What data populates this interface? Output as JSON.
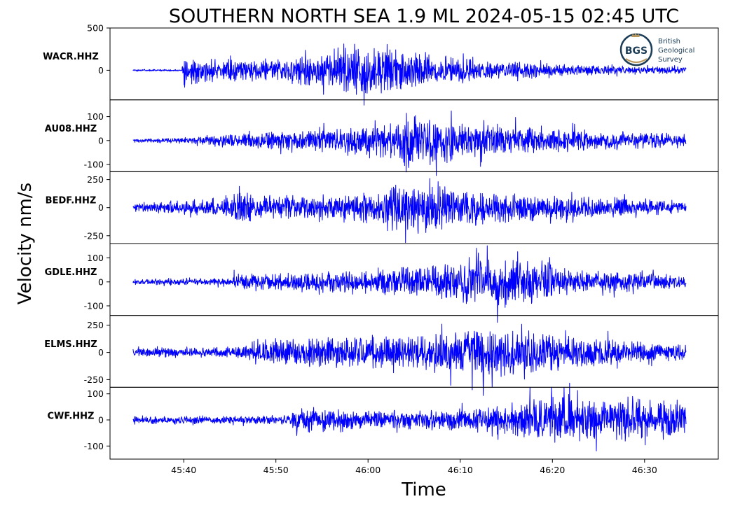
{
  "chart_data": {
    "type": "line",
    "title": "SOUTHERN NORTH SEA 1.9 ML   2024-05-15 02:45 UTC",
    "xlabel": "Time",
    "ylabel": "Velocity nm/s",
    "x_range_seconds": [
      32,
      98
    ],
    "x_ticks": [
      {
        "label": "45:40",
        "value": 40
      },
      {
        "label": "45:50",
        "value": 50
      },
      {
        "label": "46:00",
        "value": 60
      },
      {
        "label": "46:10",
        "value": 70
      },
      {
        "label": "46:20",
        "value": 80
      },
      {
        "label": "46:30",
        "value": 90
      }
    ],
    "trace_window": [
      34.5,
      94.5
    ],
    "panels": [
      {
        "station": "WACR.HHZ",
        "ylim": [
          -350,
          500
        ],
        "yticks": [
          {
            "label": "500",
            "value": 500
          },
          {
            "label": "0",
            "value": 0
          }
        ],
        "envelope": [
          [
            34.5,
            12
          ],
          [
            39.8,
            12
          ],
          [
            39.9,
            300
          ],
          [
            41.5,
            170
          ],
          [
            45,
            140
          ],
          [
            50,
            160
          ],
          [
            55,
            220
          ],
          [
            58,
            320
          ],
          [
            61,
            340
          ],
          [
            64,
            260
          ],
          [
            70,
            160
          ],
          [
            80,
            80
          ],
          [
            88,
            55
          ],
          [
            94.5,
            45
          ]
        ]
      },
      {
        "station": "AU08.HHZ",
        "ylim": [
          -130,
          170
        ],
        "yticks": [
          {
            "label": "100",
            "value": 100
          },
          {
            "label": "0",
            "value": 0
          },
          {
            "label": "-100",
            "value": -100
          }
        ],
        "envelope": [
          [
            34.5,
            8
          ],
          [
            40,
            14
          ],
          [
            46,
            35
          ],
          [
            55,
            55
          ],
          [
            62,
            75
          ],
          [
            66,
            130
          ],
          [
            68,
            100
          ],
          [
            75,
            70
          ],
          [
            85,
            45
          ],
          [
            94.5,
            28
          ]
        ]
      },
      {
        "station": "BEDF.HHZ",
        "ylim": [
          -320,
          320
        ],
        "yticks": [
          {
            "label": "250",
            "value": 250
          },
          {
            "label": "0",
            "value": 0
          },
          {
            "label": "-250",
            "value": -250
          }
        ],
        "envelope": [
          [
            34.5,
            40
          ],
          [
            39,
            70
          ],
          [
            44,
            80
          ],
          [
            45.5,
            170
          ],
          [
            48,
            110
          ],
          [
            55,
            120
          ],
          [
            60,
            170
          ],
          [
            63,
            250
          ],
          [
            67,
            280
          ],
          [
            70,
            180
          ],
          [
            80,
            120
          ],
          [
            88,
            95
          ],
          [
            94.5,
            55
          ]
        ]
      },
      {
        "station": "GDLE.HHZ",
        "ylim": [
          -140,
          160
        ],
        "yticks": [
          {
            "label": "100",
            "value": 100
          },
          {
            "label": "0",
            "value": 0
          },
          {
            "label": "-100",
            "value": -100
          }
        ],
        "envelope": [
          [
            34.5,
            12
          ],
          [
            45,
            18
          ],
          [
            45.5,
            40
          ],
          [
            55,
            45
          ],
          [
            62,
            60
          ],
          [
            68,
            80
          ],
          [
            72,
            130
          ],
          [
            76,
            110
          ],
          [
            82,
            60
          ],
          [
            94.5,
            28
          ]
        ]
      },
      {
        "station": "ELMS.HHZ",
        "ylim": [
          -320,
          340
        ],
        "yticks": [
          {
            "label": "250",
            "value": 250
          },
          {
            "label": "0",
            "value": 0
          },
          {
            "label": "-250",
            "value": -250
          }
        ],
        "envelope": [
          [
            34.5,
            45
          ],
          [
            46,
            55
          ],
          [
            46.5,
            110
          ],
          [
            55,
            150
          ],
          [
            62,
            150
          ],
          [
            68,
            210
          ],
          [
            73,
            290
          ],
          [
            77,
            230
          ],
          [
            84,
            150
          ],
          [
            94.5,
            80
          ]
        ]
      },
      {
        "station": "CWF.HHZ",
        "ylim": [
          -150,
          125
        ],
        "yticks": [
          {
            "label": "100",
            "value": 100
          },
          {
            "label": "0",
            "value": 0
          },
          {
            "label": "-100",
            "value": -100
          }
        ],
        "envelope": [
          [
            34.5,
            16
          ],
          [
            51.5,
            18
          ],
          [
            51.8,
            50
          ],
          [
            60,
            42
          ],
          [
            70,
            45
          ],
          [
            76,
            70
          ],
          [
            79,
            110
          ],
          [
            85,
            95
          ],
          [
            90,
            90
          ],
          [
            94.5,
            80
          ]
        ]
      }
    ]
  },
  "logo": {
    "mark": "BGS",
    "lines": [
      "British",
      "Geological",
      "Survey"
    ],
    "color": "#1c3d57"
  },
  "colors": {
    "trace": "#0000ff",
    "axes": "#000000",
    "logo_gold": "#b9975b"
  }
}
